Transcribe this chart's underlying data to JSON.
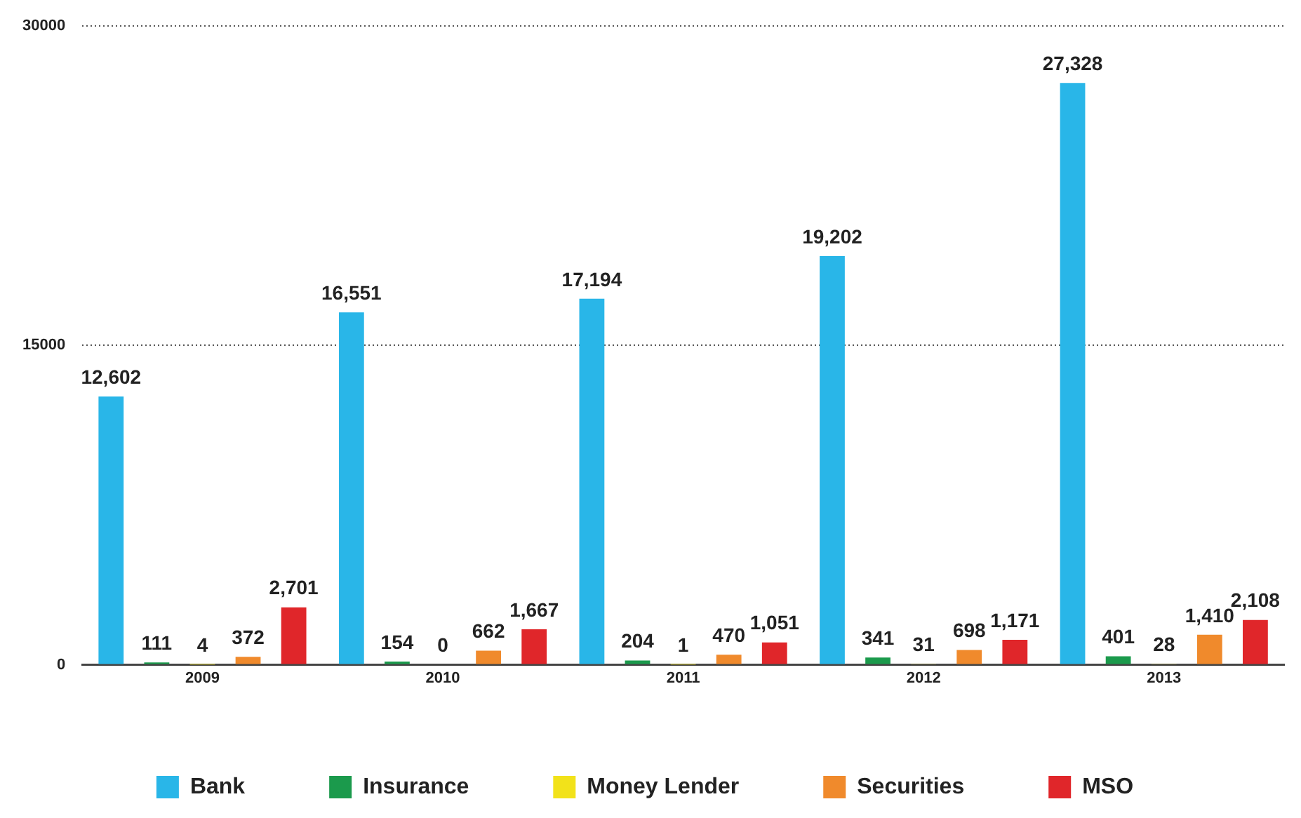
{
  "chart_data": {
    "type": "bar",
    "categories": [
      "2009",
      "2010",
      "2011",
      "2012",
      "2013"
    ],
    "series": [
      {
        "name": "Bank",
        "color": "#29b6e8",
        "values": [
          12602,
          16551,
          17194,
          19202,
          27328
        ],
        "value_labels": [
          "12,602",
          "16,551",
          "17,194",
          "19,202",
          "27,328"
        ]
      },
      {
        "name": "Insurance",
        "color": "#1b9a4c",
        "values": [
          111,
          154,
          204,
          341,
          401
        ],
        "value_labels": [
          "111",
          "154",
          "204",
          "341",
          "401"
        ]
      },
      {
        "name": "Money Lender",
        "color": "#f2e21a",
        "values": [
          4,
          0,
          1,
          31,
          28
        ],
        "value_labels": [
          "4",
          "0",
          "1",
          "31",
          "28"
        ]
      },
      {
        "name": "Securities",
        "color": "#f08a2c",
        "values": [
          372,
          662,
          470,
          698,
          1410
        ],
        "value_labels": [
          "372",
          "662",
          "470",
          "698",
          "1,410"
        ]
      },
      {
        "name": "MSO",
        "color": "#e0262a",
        "values": [
          2701,
          1667,
          1051,
          1171,
          2108
        ],
        "value_labels": [
          "2,701",
          "1,667",
          "1,051",
          "1,171",
          "2,108"
        ]
      }
    ],
    "ylim": [
      0,
      30000
    ],
    "yticks": [
      0,
      15000,
      30000
    ],
    "grid": "y",
    "legend": "bottom"
  }
}
